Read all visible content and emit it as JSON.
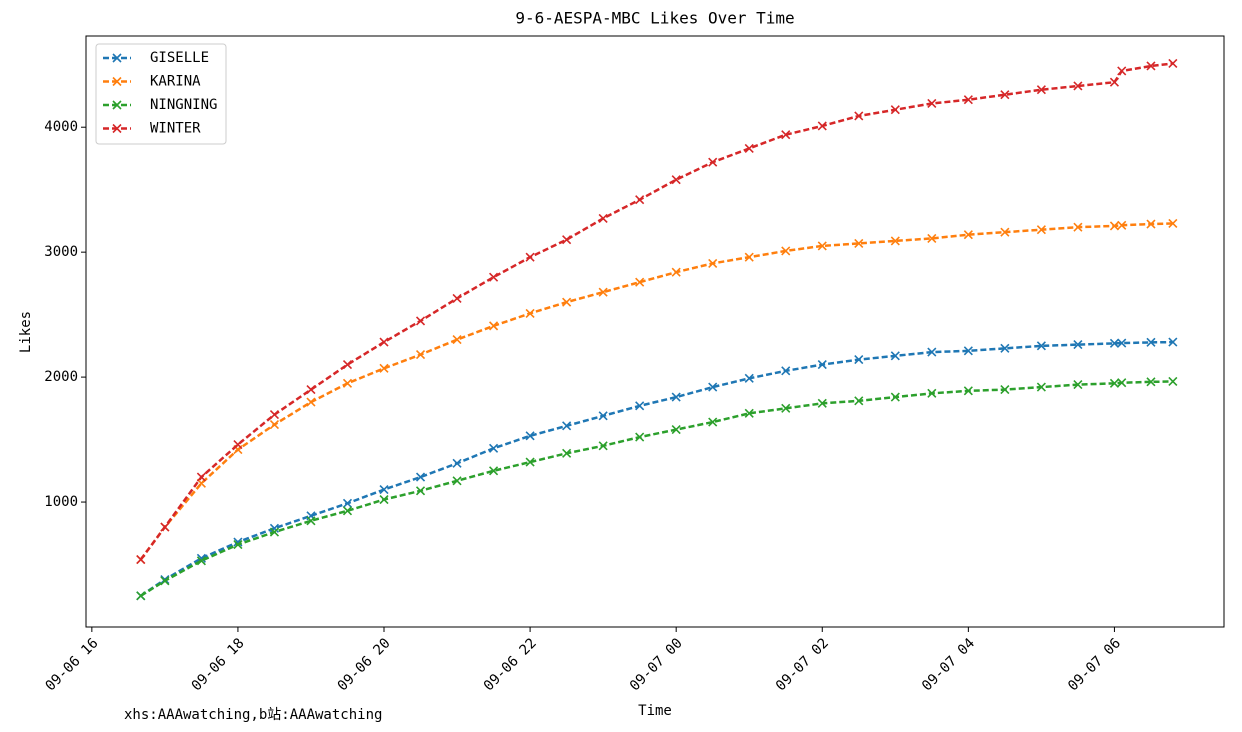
{
  "chart_data": {
    "type": "line",
    "title": "9-6-AESPA-MBC Likes Over Time",
    "xlabel": "Time",
    "ylabel": "Likes",
    "footnote": "xhs:AAAwatching,b站:AAAwatching",
    "legend": "upper left",
    "line_style": "dashed",
    "marker": "x",
    "x": [
      16.67,
      17,
      17.5,
      18,
      18.5,
      19,
      19.5,
      20,
      20.5,
      21,
      21.5,
      22,
      22.5,
      23,
      23.5,
      24,
      24.5,
      25,
      25.5,
      26,
      26.5,
      27,
      27.5,
      28,
      28.5,
      29,
      29.5,
      30,
      30.1,
      30.5,
      30.8
    ],
    "xlim": [
      15.92,
      31.5
    ],
    "xticks": [
      {
        "value": 16,
        "label": "09-06 16"
      },
      {
        "value": 18,
        "label": "09-06 18"
      },
      {
        "value": 20,
        "label": "09-06 20"
      },
      {
        "value": 22,
        "label": "09-06 22"
      },
      {
        "value": 24,
        "label": "09-07 00"
      },
      {
        "value": 26,
        "label": "09-07 02"
      },
      {
        "value": 28,
        "label": "09-07 04"
      },
      {
        "value": 30,
        "label": "09-07 06"
      }
    ],
    "ylim": [
      0,
      4730
    ],
    "yticks": [
      1000,
      2000,
      3000,
      4000
    ],
    "series": [
      {
        "name": "GISELLE",
        "color": "#1f77b4",
        "values": [
          250,
          380,
          550,
          680,
          790,
          890,
          990,
          1100,
          1200,
          1310,
          1430,
          1530,
          1610,
          1690,
          1770,
          1840,
          1920,
          1990,
          2050,
          2100,
          2140,
          2170,
          2200,
          2210,
          2230,
          2250,
          2260,
          2270,
          2272,
          2278,
          2280
        ]
      },
      {
        "name": "KARINA",
        "color": "#ff7f0e",
        "values": [
          540,
          800,
          1150,
          1420,
          1620,
          1800,
          1950,
          2070,
          2180,
          2300,
          2410,
          2510,
          2600,
          2680,
          2760,
          2840,
          2910,
          2960,
          3010,
          3050,
          3070,
          3090,
          3110,
          3140,
          3160,
          3180,
          3200,
          3210,
          3215,
          3225,
          3230
        ]
      },
      {
        "name": "NINGNING",
        "color": "#2ca02c",
        "values": [
          250,
          370,
          530,
          660,
          760,
          850,
          930,
          1020,
          1090,
          1170,
          1250,
          1320,
          1390,
          1450,
          1520,
          1580,
          1640,
          1710,
          1750,
          1790,
          1810,
          1840,
          1870,
          1890,
          1900,
          1920,
          1940,
          1950,
          1955,
          1962,
          1965
        ]
      },
      {
        "name": "WINTER",
        "color": "#d62728",
        "values": [
          540,
          800,
          1200,
          1460,
          1700,
          1900,
          2100,
          2280,
          2450,
          2630,
          2800,
          2960,
          3100,
          3270,
          3420,
          3580,
          3720,
          3830,
          3940,
          4010,
          4090,
          4140,
          4190,
          4220,
          4260,
          4300,
          4330,
          4360,
          4450,
          4490,
          4510
        ]
      }
    ]
  }
}
